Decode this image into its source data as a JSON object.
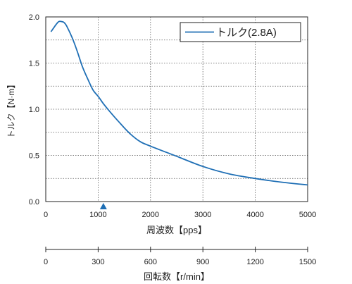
{
  "chart_data": {
    "type": "line",
    "xlabel": "周波数【pps】",
    "ylabel": "トルク【N·m】",
    "xlim": [
      0,
      5000
    ],
    "ylim": [
      0,
      2.0
    ],
    "x_ticks": [
      "0",
      "1000",
      "2000",
      "3000",
      "4000",
      "5000"
    ],
    "y_ticks": [
      "0.0",
      "0.5",
      "1.0",
      "1.5",
      "2.0"
    ],
    "grid": true,
    "legend_position": "top-right",
    "series": [
      {
        "name": "トルク(2.8A)",
        "color": "#1f6fb5",
        "x": [
          100,
          150,
          200,
          250,
          300,
          350,
          400,
          500,
          600,
          700,
          800,
          900,
          1000,
          1100,
          1200,
          1400,
          1600,
          1800,
          2000,
          2500,
          3000,
          3500,
          4000,
          4500,
          5000
        ],
        "y": [
          1.84,
          1.88,
          1.92,
          1.95,
          1.95,
          1.94,
          1.9,
          1.78,
          1.63,
          1.46,
          1.33,
          1.21,
          1.14,
          1.06,
          0.99,
          0.86,
          0.74,
          0.65,
          0.6,
          0.49,
          0.38,
          0.3,
          0.25,
          0.21,
          0.18
        ]
      }
    ],
    "marker": {
      "x": 1100,
      "shape": "triangle",
      "color": "#1f6fb5"
    },
    "secondary_axis": {
      "label": "回転数【r/min】",
      "range": [
        0,
        1500
      ],
      "ticks": [
        "0",
        "300",
        "600",
        "900",
        "1200",
        "1500"
      ]
    }
  }
}
